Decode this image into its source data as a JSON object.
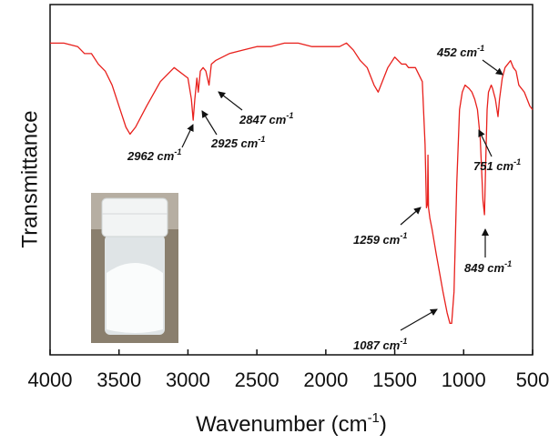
{
  "chart_data": {
    "type": "line",
    "ylabel": "Transmittance",
    "xlabel": "Wavenumber (cm",
    "xlabel_sup": "-1",
    "xlabel_end": ")",
    "xlim": [
      4000,
      500
    ],
    "ylim": [
      0,
      100
    ],
    "xticks": [
      4000,
      3500,
      3000,
      2500,
      2000,
      1500,
      1000,
      500
    ],
    "color": "#e8201c",
    "x": [
      4000,
      3900,
      3800,
      3750,
      3700,
      3650,
      3600,
      3550,
      3500,
      3450,
      3420,
      3380,
      3300,
      3200,
      3100,
      3000,
      2975,
      2962,
      2950,
      2935,
      2925,
      2910,
      2890,
      2870,
      2847,
      2830,
      2800,
      2700,
      2600,
      2500,
      2400,
      2300,
      2200,
      2100,
      2000,
      1900,
      1850,
      1800,
      1750,
      1700,
      1650,
      1620,
      1600,
      1550,
      1500,
      1450,
      1420,
      1400,
      1350,
      1300,
      1280,
      1270,
      1262,
      1259,
      1255,
      1245,
      1230,
      1200,
      1150,
      1120,
      1100,
      1087,
      1070,
      1050,
      1030,
      1010,
      990,
      960,
      940,
      920,
      900,
      880,
      860,
      849,
      840,
      830,
      820,
      800,
      790,
      770,
      751,
      740,
      720,
      700,
      680,
      660,
      640,
      620,
      600,
      560,
      520,
      500
    ],
    "values": [
      89,
      89,
      88,
      86,
      86,
      83,
      81,
      77,
      71,
      65,
      63,
      65,
      71,
      78,
      82,
      79,
      73,
      67,
      73,
      79,
      75,
      81,
      82,
      81,
      77,
      83,
      84,
      86,
      87,
      88,
      88,
      89,
      89,
      88,
      88,
      88,
      89,
      87,
      84,
      82,
      77,
      75,
      77,
      82,
      85,
      83,
      83,
      82,
      82,
      78,
      60,
      42,
      43,
      57,
      42,
      39,
      36,
      29,
      18,
      12,
      9,
      9,
      18,
      49,
      70,
      75,
      77,
      76,
      75,
      73,
      70,
      62,
      44,
      40,
      55,
      70,
      75,
      77,
      76,
      73,
      68,
      73,
      79,
      82,
      83,
      84,
      82,
      81,
      77,
      75,
      71,
      70
    ],
    "annotations": [
      {
        "text": "2962 cm",
        "sup": "-1"
      },
      {
        "text": "2925 cm",
        "sup": "-1"
      },
      {
        "text": "2847 cm",
        "sup": "-1"
      },
      {
        "text": "452 cm",
        "sup": "-1"
      },
      {
        "text": "751 cm",
        "sup": "-1"
      },
      {
        "text": "1259 cm",
        "sup": "-1"
      },
      {
        "text": "849 cm",
        "sup": "-1"
      },
      {
        "text": "1087 cm",
        "sup": "-1"
      }
    ]
  }
}
